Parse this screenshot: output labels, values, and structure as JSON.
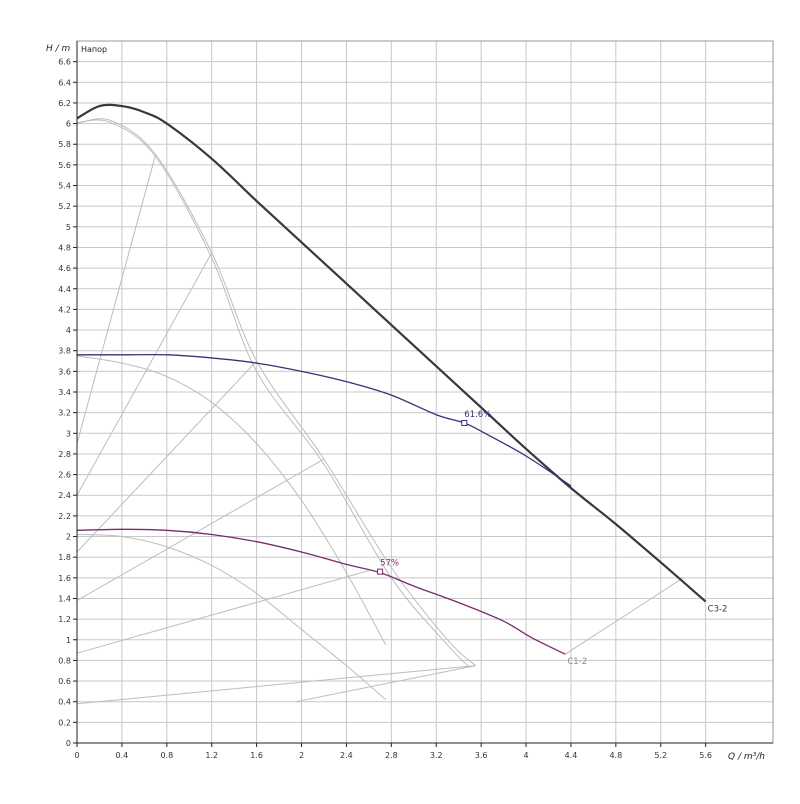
{
  "chart_data": {
    "type": "line",
    "title": "Напор",
    "xlabel": "Q / m³/h",
    "ylabel": "H / m",
    "xlim": [
      0,
      6.2
    ],
    "ylim": [
      0,
      6.8
    ],
    "x_ticks": [
      0,
      0.4,
      0.8,
      1.2,
      1.6,
      2,
      2.4,
      2.8,
      3.2,
      3.6,
      4,
      4.4,
      4.8,
      5.2,
      5.6
    ],
    "y_ticks": [
      0,
      0.2,
      0.4,
      0.6,
      0.8,
      1,
      1.2,
      1.4,
      1.6,
      1.8,
      2,
      2.2,
      2.4,
      2.6,
      2.8,
      3,
      3.2,
      3.4,
      3.6,
      3.8,
      4,
      4.2,
      4.4,
      4.6,
      4.8,
      5,
      5.2,
      5.4,
      5.6,
      5.8,
      6,
      6.2,
      6.4,
      6.6
    ],
    "grid": true,
    "legend": "none",
    "series": [
      {
        "name": "C3-2",
        "color": "#333a40",
        "x": [
          0,
          0.2,
          0.4,
          0.6,
          0.8,
          1.2,
          1.6,
          2,
          2.4,
          2.8,
          3.2,
          3.6,
          4,
          4.4,
          4.8,
          5.2,
          5.6
        ],
        "y": [
          6.05,
          6.17,
          6.17,
          6.11,
          6.0,
          5.66,
          5.25,
          4.85,
          4.45,
          4.05,
          3.65,
          3.25,
          2.85,
          2.47,
          2.12,
          1.75,
          1.37
        ]
      },
      {
        "color": "#3c2f7a",
        "x": [
          0,
          0.4,
          0.8,
          1.2,
          1.6,
          2,
          2.4,
          2.8,
          3.2,
          3.45,
          3.6,
          4,
          4.4
        ],
        "y": [
          3.76,
          3.76,
          3.76,
          3.73,
          3.68,
          3.6,
          3.5,
          3.37,
          3.18,
          3.1,
          3.02,
          2.78,
          2.49
        ]
      },
      {
        "name": "C1-2",
        "color": "#7a2a6e",
        "x": [
          0,
          0.4,
          0.8,
          1.2,
          1.6,
          2,
          2.4,
          2.7,
          3,
          3.4,
          3.8,
          4.05,
          4.35
        ],
        "y": [
          2.06,
          2.07,
          2.06,
          2.02,
          1.95,
          1.85,
          1.73,
          1.65,
          1.52,
          1.36,
          1.18,
          1.02,
          0.86
        ]
      }
    ],
    "markers": [
      {
        "label": "61.6%",
        "x": 3.45,
        "y": 3.1,
        "color": "#3c2f7a"
      },
      {
        "label": "57%",
        "x": 2.7,
        "y": 1.66,
        "color": "#7a2a6e"
      }
    ],
    "end_labels": [
      {
        "text": "C3-2",
        "x": 5.6,
        "y": 1.37,
        "color": "#333a40"
      },
      {
        "text": "C1-2",
        "x": 4.35,
        "y": 0.86,
        "color": "#888888"
      }
    ],
    "reference_lines": [
      {
        "x": [
          0,
          0.3,
          0.7,
          1.2,
          1.6,
          2.2,
          2.8,
          3.3,
          3.55
        ],
        "y": [
          6.0,
          6.03,
          5.7,
          4.75,
          3.7,
          2.75,
          1.7,
          1.0,
          0.75
        ]
      },
      {
        "x": [
          0,
          0.3,
          0.7,
          1.2,
          1.6,
          2.2,
          2.8,
          3.3,
          3.5
        ],
        "y": [
          6.01,
          6.01,
          5.68,
          4.7,
          3.6,
          2.7,
          1.6,
          0.95,
          0.73
        ]
      },
      {
        "x": [
          0,
          0.4,
          0.8,
          1.2,
          1.6,
          2,
          2.4,
          2.75
        ],
        "y": [
          3.75,
          3.68,
          3.55,
          3.3,
          2.9,
          2.35,
          1.65,
          0.95
        ]
      },
      {
        "x": [
          0,
          0.4,
          0.8,
          1.2,
          1.6,
          2,
          2.4,
          2.75
        ],
        "y": [
          2.02,
          2.0,
          1.9,
          1.72,
          1.45,
          1.1,
          0.75,
          0.42
        ]
      },
      {
        "x": [
          0,
          0.7
        ],
        "y": [
          2.9,
          5.7
        ]
      },
      {
        "x": [
          0,
          1.2
        ],
        "y": [
          2.4,
          4.75
        ]
      },
      {
        "x": [
          0,
          1.6
        ],
        "y": [
          1.85,
          3.7
        ]
      },
      {
        "x": [
          0,
          2.2
        ],
        "y": [
          1.38,
          2.75
        ]
      },
      {
        "x": [
          0,
          2.6
        ],
        "y": [
          0.87,
          1.67
        ]
      },
      {
        "x": [
          0,
          3.55
        ],
        "y": [
          0.38,
          0.75
        ]
      },
      {
        "x": [
          1.95,
          3.55
        ],
        "y": [
          0.4,
          0.75
        ]
      },
      {
        "x": [
          4.35,
          5.4
        ],
        "y": [
          0.86,
          1.6
        ]
      }
    ]
  }
}
